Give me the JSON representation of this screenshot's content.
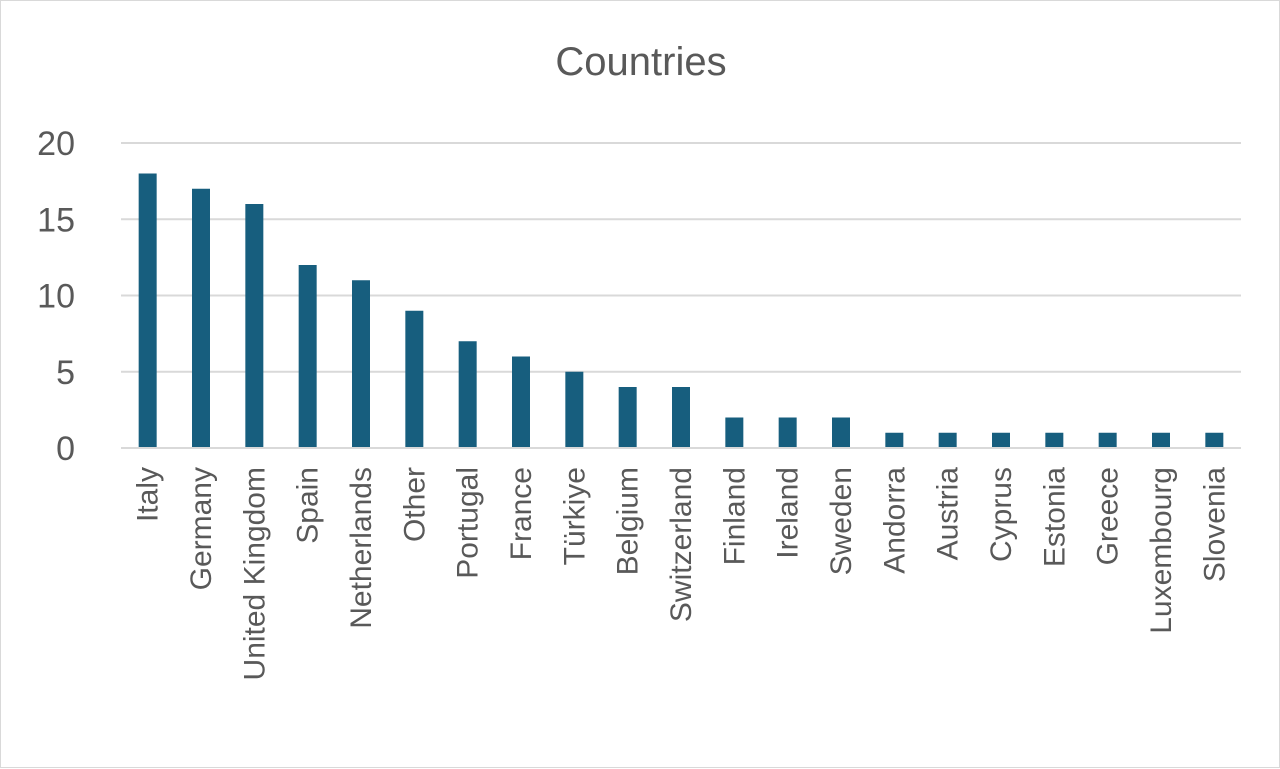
{
  "chart_data": {
    "type": "bar",
    "title": "Countries",
    "xlabel": "",
    "ylabel": "",
    "categories": [
      "Italy",
      "Germany",
      "United Kingdom",
      "Spain",
      "Netherlands",
      "Other",
      "Portugal",
      "France",
      "Türkiye",
      "Belgium",
      "Switzerland",
      "Finland",
      "Ireland",
      "Sweden",
      "Andorra",
      "Austria",
      "Cyprus",
      "Estonia",
      "Greece",
      "Luxembourg",
      "Slovenia"
    ],
    "values": [
      18,
      17,
      16,
      12,
      11,
      9,
      7,
      6,
      5,
      4,
      4,
      2,
      2,
      2,
      1,
      1,
      1,
      1,
      1,
      1,
      1
    ],
    "ylim": [
      0,
      20
    ],
    "yticks": [
      0,
      5,
      10,
      15,
      20
    ],
    "grid": true,
    "legend": "none",
    "bar_color": "#175E7E"
  }
}
